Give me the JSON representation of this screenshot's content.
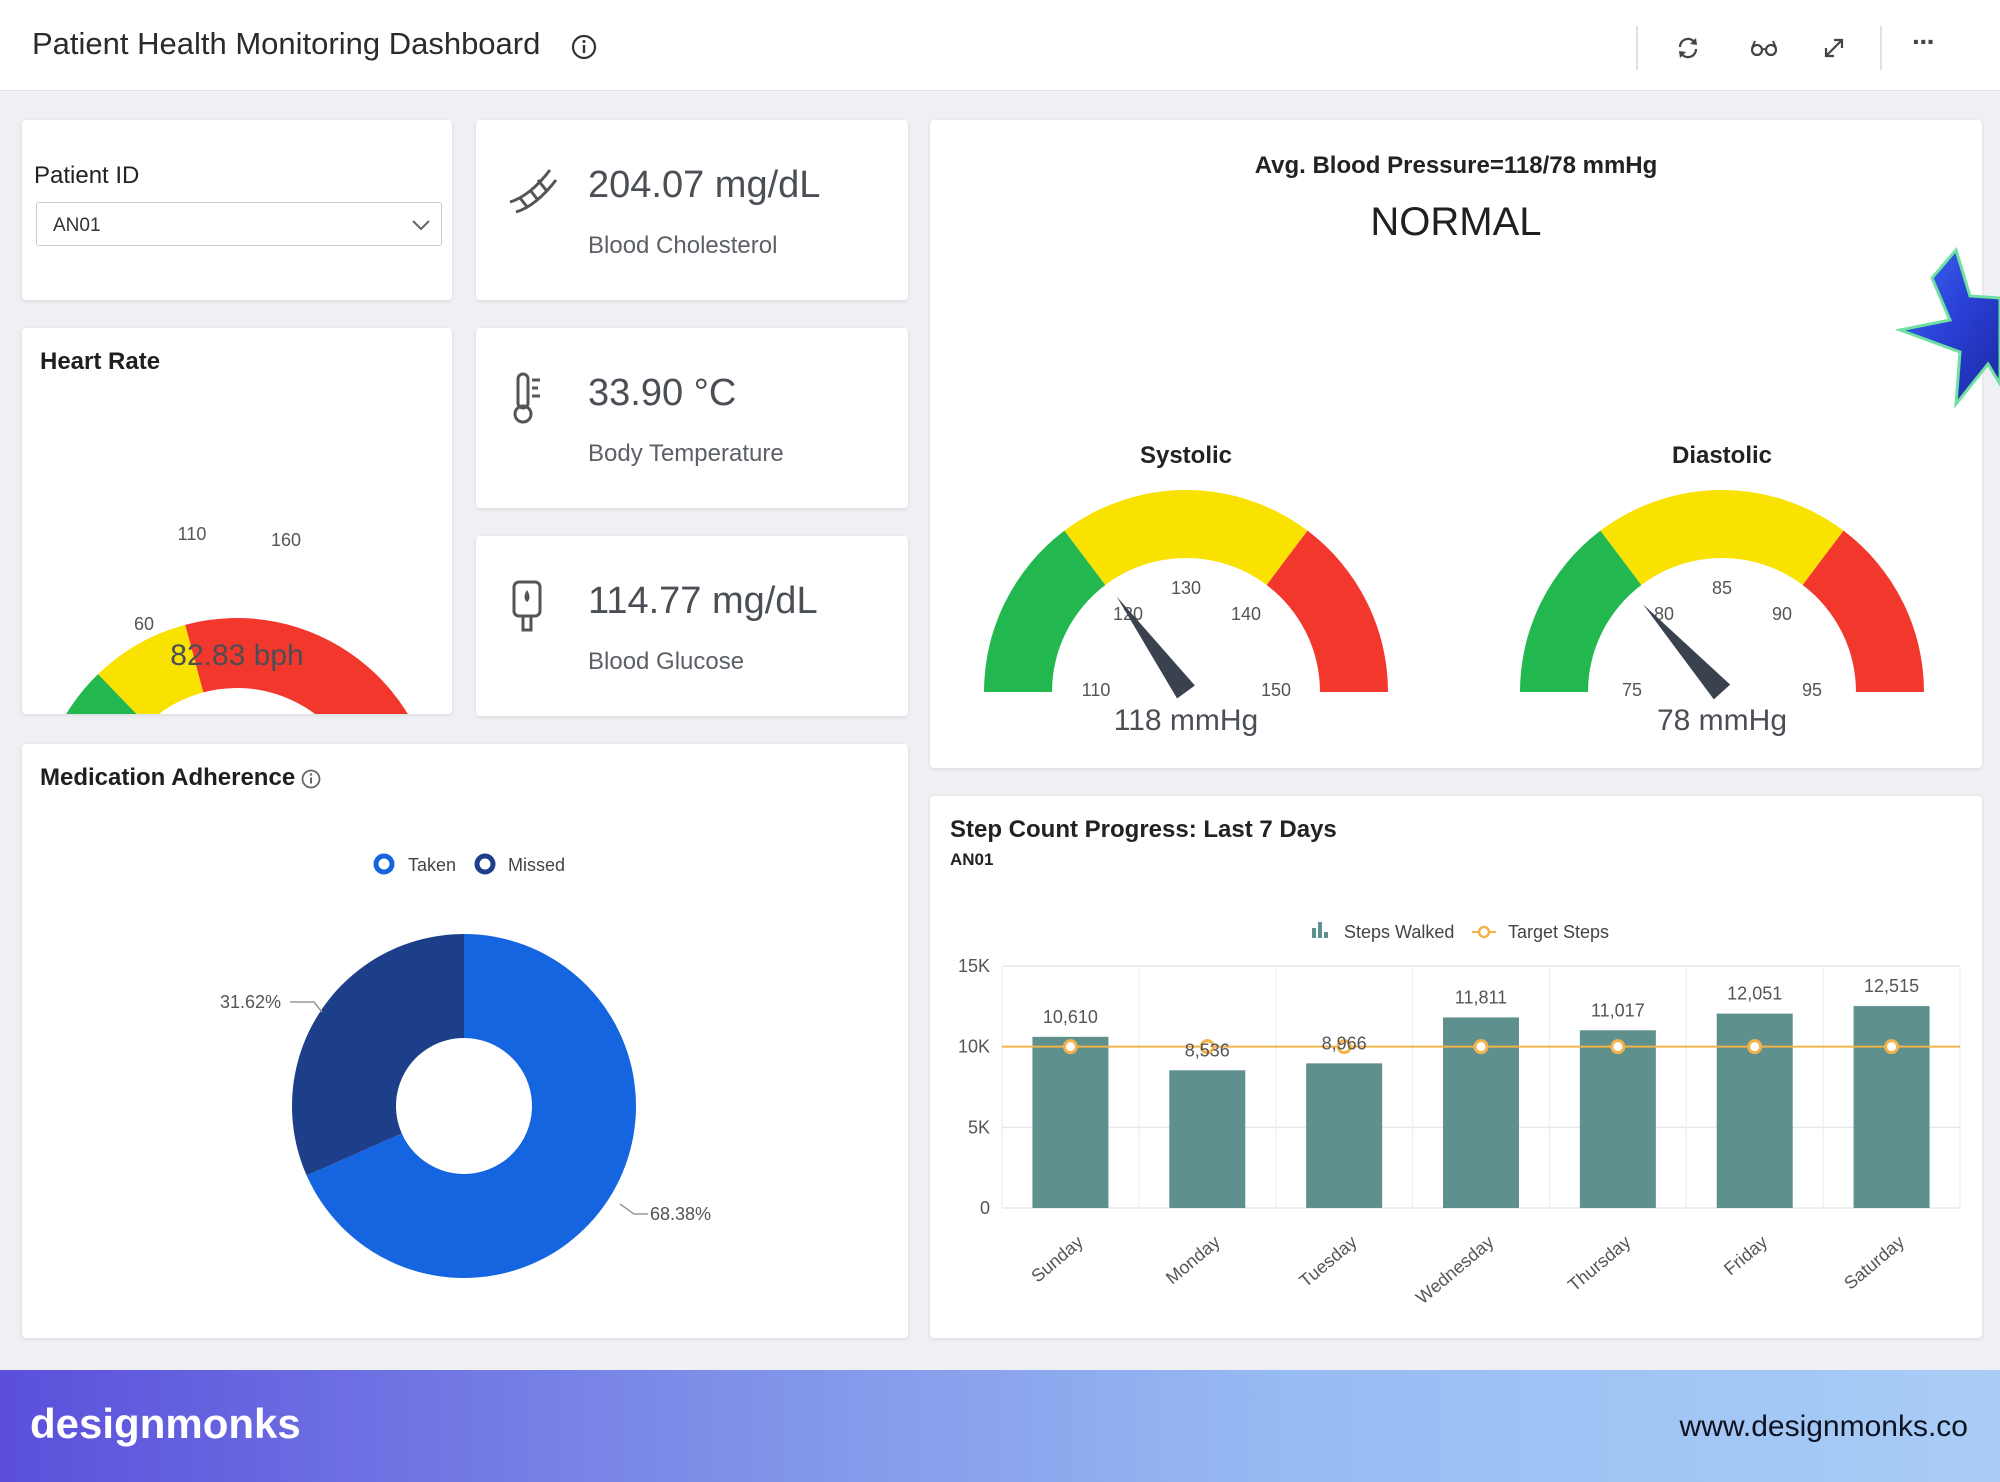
{
  "header": {
    "title": "Patient Health Monitoring Dashboard",
    "icons": [
      "info-icon",
      "refresh-icon",
      "glasses-icon",
      "expand-icon",
      "more-icon"
    ],
    "more_label": "···"
  },
  "patient": {
    "label": "Patient ID",
    "selected": "AN01"
  },
  "heart_rate": {
    "title": "Heart Rate",
    "value_text": "82.83 bph",
    "value": 82.83,
    "ticks": [
      "60",
      "110",
      "160"
    ]
  },
  "metrics": [
    {
      "value": "204.07 mg/dL",
      "label": "Blood Cholesterol",
      "icon": "cholesterol-icon"
    },
    {
      "value": "33.90 °C",
      "label": "Body Temperature",
      "icon": "thermometer-icon"
    },
    {
      "value": "114.77 mg/dL",
      "label": "Blood Glucose",
      "icon": "glucose-meter-icon"
    }
  ],
  "blood_pressure": {
    "title": "Avg. Blood Pressure=118/78  mmHg",
    "status": "NORMAL",
    "systolic": {
      "label": "Systolic",
      "value_text": "118 mmHg",
      "value": 118,
      "ticks": [
        "110",
        "120",
        "130",
        "140",
        "150"
      ]
    },
    "diastolic": {
      "label": "Diastolic",
      "value_text": "78 mmHg",
      "value": 78,
      "ticks": [
        "75",
        "80",
        "85",
        "90",
        "95"
      ]
    }
  },
  "medication": {
    "title": "Medication Adherence",
    "legend": [
      "Taken",
      "Missed"
    ],
    "taken_pct_label": "68.38%",
    "missed_pct_label": "31.62%"
  },
  "chart_data": [
    {
      "type": "pie",
      "title": "Medication Adherence",
      "categories": [
        "Taken",
        "Missed"
      ],
      "values": [
        68.38,
        31.62
      ],
      "colors": [
        "#1565e0",
        "#1d3f8a"
      ]
    },
    {
      "type": "bar",
      "title": "Step Count Progress: Last 7 Days",
      "subtitle": "AN01",
      "categories": [
        "Sunday",
        "Monday",
        "Tuesday",
        "Wednesday",
        "Thursday",
        "Friday",
        "Saturday"
      ],
      "series": [
        {
          "name": "Steps Walked",
          "type": "bar",
          "values": [
            10610,
            8536,
            8966,
            11811,
            11017,
            12051,
            12515
          ],
          "labels": [
            "10,610",
            "8,536",
            "8,966",
            "11,811",
            "11,017",
            "12,051",
            "12,515"
          ]
        },
        {
          "name": "Target Steps",
          "type": "line",
          "values": [
            10000,
            10000,
            10000,
            10000,
            10000,
            10000,
            10000
          ]
        }
      ],
      "yticks": [
        "0",
        "5K",
        "10K",
        "15K"
      ],
      "ylim": [
        0,
        15000
      ],
      "legend": "top-center",
      "grid": true
    }
  ],
  "colors": {
    "gauge_green": "#22b84f",
    "gauge_yellow": "#f9e100",
    "gauge_red": "#f2382d",
    "needle": "#3a4250",
    "bar": "#5e918e",
    "target_line": "#f3b34a"
  },
  "footer": {
    "brand": "designmonks",
    "url": "www.designmonks.co"
  }
}
